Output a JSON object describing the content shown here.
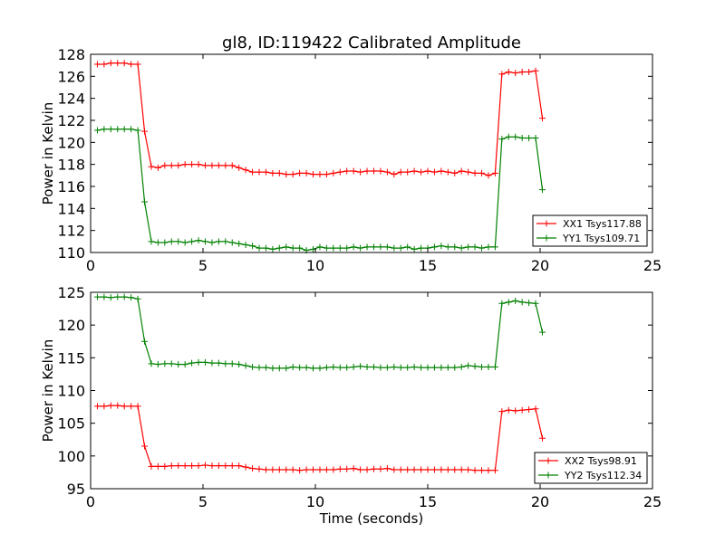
{
  "figure_title": "gl8, ID:119422 Calibrated Amplitude",
  "chart_data": [
    {
      "type": "line",
      "title": "gl8, ID:119422 Calibrated Amplitude",
      "xlabel": "",
      "ylabel": "Power in Kelvin",
      "xlim": [
        0,
        25
      ],
      "ylim": [
        110,
        128
      ],
      "xticks": [
        0,
        5,
        10,
        15,
        20,
        25
      ],
      "yticks": [
        110,
        112,
        114,
        116,
        118,
        120,
        122,
        124,
        126,
        128
      ],
      "grid": false,
      "legend_position": "lower-right",
      "x": [
        0.3,
        0.6,
        0.9,
        1.2,
        1.5,
        1.8,
        2.1,
        2.4,
        2.7,
        3.0,
        3.3,
        3.6,
        3.9,
        4.2,
        4.5,
        4.8,
        5.1,
        5.4,
        5.7,
        6.0,
        6.3,
        6.6,
        6.9,
        7.2,
        7.5,
        7.8,
        8.1,
        8.4,
        8.7,
        9.0,
        9.3,
        9.6,
        9.9,
        10.2,
        10.5,
        10.8,
        11.1,
        11.4,
        11.7,
        12.0,
        12.3,
        12.6,
        12.9,
        13.2,
        13.5,
        13.8,
        14.1,
        14.4,
        14.7,
        15.0,
        15.3,
        15.6,
        15.9,
        16.2,
        16.5,
        16.8,
        17.1,
        17.4,
        17.7,
        18.0,
        18.3,
        18.6,
        18.9,
        19.2,
        19.5,
        19.8,
        20.1
      ],
      "series": [
        {
          "name": "XX1 Tsys117.88",
          "color": "#ff0000",
          "values": [
            127.1,
            127.1,
            127.2,
            127.2,
            127.2,
            127.1,
            127.1,
            121.0,
            117.8,
            117.7,
            117.9,
            117.9,
            117.9,
            118.0,
            118.0,
            118.0,
            117.9,
            117.9,
            117.9,
            117.9,
            117.9,
            117.7,
            117.5,
            117.3,
            117.3,
            117.3,
            117.2,
            117.2,
            117.1,
            117.1,
            117.2,
            117.2,
            117.1,
            117.1,
            117.1,
            117.2,
            117.3,
            117.4,
            117.4,
            117.3,
            117.4,
            117.4,
            117.4,
            117.3,
            117.1,
            117.3,
            117.3,
            117.4,
            117.3,
            117.4,
            117.3,
            117.4,
            117.3,
            117.2,
            117.4,
            117.3,
            117.2,
            117.2,
            117.0,
            117.2,
            126.2,
            126.4,
            126.3,
            126.4,
            126.4,
            126.5,
            122.2
          ]
        },
        {
          "name": "YY1 Tsys109.71",
          "color": "#008000",
          "values": [
            121.1,
            121.2,
            121.2,
            121.2,
            121.2,
            121.2,
            121.1,
            114.6,
            111.0,
            110.9,
            110.9,
            111.0,
            111.0,
            110.9,
            111.0,
            111.1,
            111.0,
            110.9,
            111.0,
            111.0,
            110.9,
            110.8,
            110.7,
            110.6,
            110.4,
            110.4,
            110.3,
            110.4,
            110.5,
            110.4,
            110.4,
            110.2,
            110.3,
            110.5,
            110.4,
            110.4,
            110.4,
            110.4,
            110.5,
            110.4,
            110.5,
            110.5,
            110.5,
            110.5,
            110.4,
            110.4,
            110.5,
            110.3,
            110.4,
            110.4,
            110.5,
            110.6,
            110.5,
            110.5,
            110.4,
            110.5,
            110.5,
            110.4,
            110.5,
            110.5,
            120.3,
            120.5,
            120.5,
            120.4,
            120.4,
            120.4,
            115.7
          ]
        }
      ]
    },
    {
      "type": "line",
      "title": "",
      "xlabel": "Time (seconds)",
      "ylabel": "Power in Kelvin",
      "xlim": [
        0,
        25
      ],
      "ylim": [
        95,
        125
      ],
      "xticks": [
        0,
        5,
        10,
        15,
        20,
        25
      ],
      "yticks": [
        95,
        100,
        105,
        110,
        115,
        120,
        125
      ],
      "grid": false,
      "legend_position": "lower-right",
      "x": [
        0.3,
        0.6,
        0.9,
        1.2,
        1.5,
        1.8,
        2.1,
        2.4,
        2.7,
        3.0,
        3.3,
        3.6,
        3.9,
        4.2,
        4.5,
        4.8,
        5.1,
        5.4,
        5.7,
        6.0,
        6.3,
        6.6,
        6.9,
        7.2,
        7.5,
        7.8,
        8.1,
        8.4,
        8.7,
        9.0,
        9.3,
        9.6,
        9.9,
        10.2,
        10.5,
        10.8,
        11.1,
        11.4,
        11.7,
        12.0,
        12.3,
        12.6,
        12.9,
        13.2,
        13.5,
        13.8,
        14.1,
        14.4,
        14.7,
        15.0,
        15.3,
        15.6,
        15.9,
        16.2,
        16.5,
        16.8,
        17.1,
        17.4,
        17.7,
        18.0,
        18.3,
        18.6,
        18.9,
        19.2,
        19.5,
        19.8,
        20.1
      ],
      "series": [
        {
          "name": "XX2 Tsys98.91",
          "color": "#ff0000",
          "values": [
            107.6,
            107.6,
            107.7,
            107.7,
            107.6,
            107.6,
            107.6,
            101.5,
            98.4,
            98.4,
            98.4,
            98.5,
            98.5,
            98.5,
            98.5,
            98.5,
            98.6,
            98.5,
            98.5,
            98.5,
            98.5,
            98.5,
            98.3,
            98.1,
            98.0,
            97.9,
            97.9,
            97.9,
            97.9,
            97.9,
            97.8,
            97.9,
            97.9,
            97.9,
            97.9,
            97.9,
            98.0,
            98.0,
            98.1,
            97.9,
            97.9,
            98.0,
            98.0,
            98.1,
            97.9,
            97.9,
            97.9,
            97.9,
            97.9,
            97.9,
            97.9,
            97.9,
            97.9,
            97.9,
            97.9,
            97.9,
            97.8,
            97.8,
            97.8,
            97.8,
            106.8,
            107.0,
            106.9,
            107.0,
            107.1,
            107.2,
            102.7
          ]
        },
        {
          "name": "YY2 Tsys112.34",
          "color": "#008000",
          "values": [
            124.3,
            124.3,
            124.2,
            124.3,
            124.3,
            124.2,
            124.0,
            117.5,
            114.1,
            114.0,
            114.1,
            114.1,
            114.0,
            114.0,
            114.2,
            114.3,
            114.3,
            114.2,
            114.2,
            114.1,
            114.1,
            114.0,
            113.8,
            113.6,
            113.5,
            113.5,
            113.4,
            113.4,
            113.4,
            113.6,
            113.5,
            113.5,
            113.4,
            113.4,
            113.5,
            113.6,
            113.5,
            113.5,
            113.6,
            113.7,
            113.6,
            113.6,
            113.5,
            113.5,
            113.6,
            113.5,
            113.5,
            113.6,
            113.5,
            113.5,
            113.5,
            113.5,
            113.5,
            113.5,
            113.6,
            113.8,
            113.7,
            113.6,
            113.6,
            113.6,
            123.3,
            123.5,
            123.7,
            123.5,
            123.4,
            123.3,
            118.9
          ]
        }
      ]
    }
  ]
}
